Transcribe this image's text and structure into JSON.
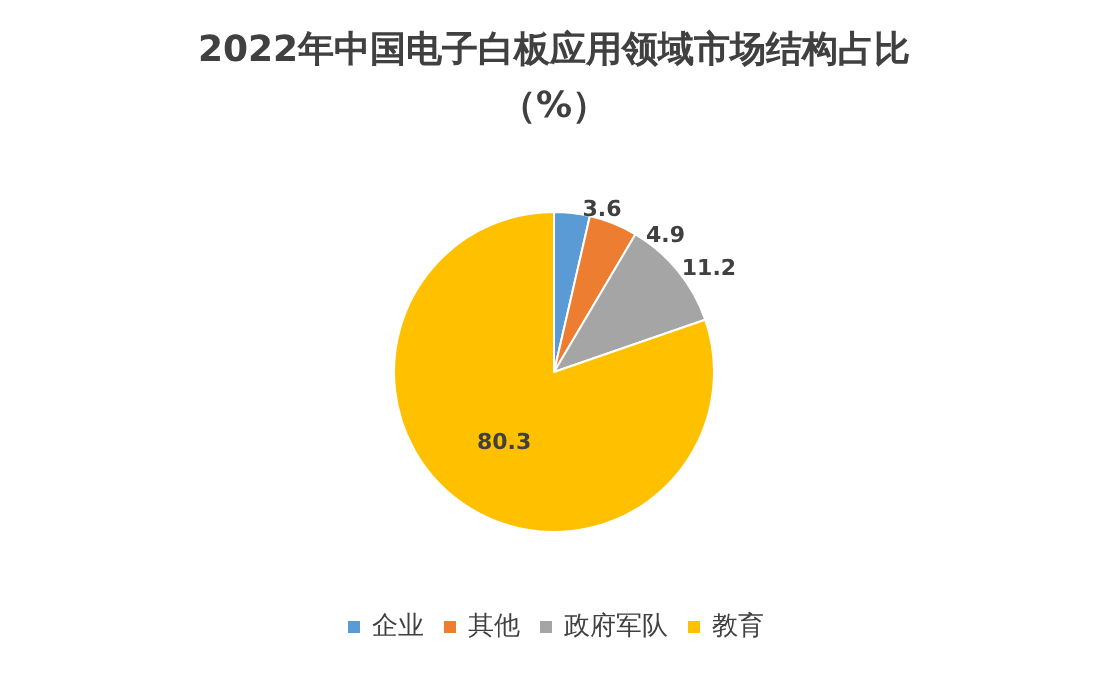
{
  "chart_data": {
    "type": "pie",
    "title": "2022年中国电子白板应用领域市场结构占比（%）",
    "categories": [
      "企业",
      "其他",
      "政府军队",
      "教育"
    ],
    "values": [
      3.6,
      4.9,
      11.2,
      80.3
    ],
    "colors": [
      "#5b9bd5",
      "#ed7d31",
      "#a5a5a5",
      "#ffc000"
    ],
    "data_labels": true,
    "legend": "bottom"
  }
}
